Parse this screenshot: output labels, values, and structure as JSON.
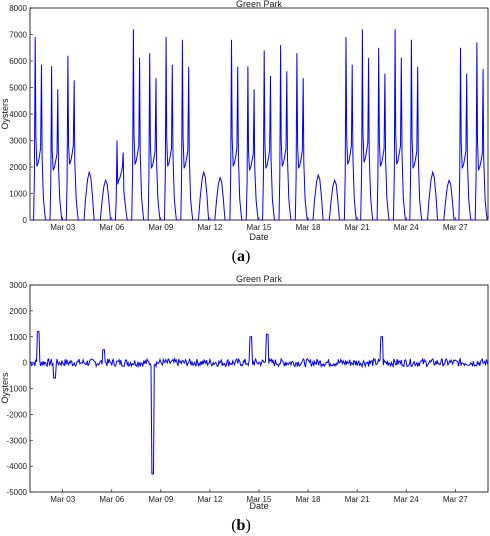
{
  "figure": {
    "caption_a": {
      "open": "(",
      "label": "a",
      "close": ")"
    },
    "caption_b": {
      "open": "(",
      "label": "b",
      "close": ")"
    }
  },
  "chart_data": [
    {
      "type": "line",
      "title": "Green Park",
      "xlabel": "Date",
      "ylabel": "Oysters",
      "line_color": "#0000ff",
      "grid": false,
      "x_start": "2012-03-01",
      "x_end": "2012-03-29",
      "xlim": [
        "Mar 01",
        "Mar 29"
      ],
      "ylim": [
        0,
        8000
      ],
      "yticks": [
        0,
        1000,
        2000,
        3000,
        4000,
        5000,
        6000,
        7000,
        8000
      ],
      "xticks": [
        "Mar 03",
        "Mar 06",
        "Mar 09",
        "Mar 12",
        "Mar 15",
        "Mar 18",
        "Mar 21",
        "Mar 24",
        "Mar 27"
      ],
      "series": [
        {
          "day_type": [
            "weekday",
            "weekday",
            "weekday",
            "weekend",
            "weekend",
            "weekday",
            "weekday",
            "weekday",
            "weekday",
            "weekday",
            "weekend",
            "weekend",
            "weekday",
            "weekday",
            "weekday",
            "weekday",
            "weekday",
            "weekend",
            "weekend",
            "weekday",
            "weekday",
            "weekday",
            "weekday",
            "weekday",
            "weekend",
            "weekend",
            "weekday",
            "weekday"
          ],
          "day_morning_peak": [
            6900,
            5800,
            6200,
            1800,
            1500,
            3000,
            7200,
            6300,
            6900,
            6800,
            1800,
            1600,
            6800,
            5800,
            6400,
            6600,
            6300,
            1700,
            1500,
            6900,
            7200,
            6500,
            7200,
            6800,
            1800,
            1500,
            6500,
            6700
          ],
          "day_evening_peak": [
            2700,
            2500,
            2800,
            0,
            0,
            2000,
            2800,
            2600,
            2700,
            2600,
            0,
            0,
            2700,
            2500,
            2600,
            2700,
            2600,
            0,
            0,
            2800,
            2900,
            2700,
            2800,
            2600,
            0,
            0,
            2600,
            2500
          ]
        }
      ]
    },
    {
      "type": "line",
      "title": "Green Park",
      "xlabel": "Date",
      "ylabel": "Oysters",
      "line_color": "#0000ff",
      "grid": false,
      "x_start": "2012-03-01",
      "x_end": "2012-03-29",
      "xlim": [
        "Mar 01",
        "Mar 29"
      ],
      "ylim": [
        -5000,
        3000
      ],
      "yticks": [
        -5000,
        -4000,
        -3000,
        -2000,
        -1000,
        0,
        1000,
        2000,
        3000
      ],
      "xticks": [
        "Mar 03",
        "Mar 06",
        "Mar 09",
        "Mar 12",
        "Mar 15",
        "Mar 18",
        "Mar 21",
        "Mar 24",
        "Mar 27"
      ],
      "series": [
        {
          "spikes": [
            {
              "date": "Mar 01",
              "value": 1200
            },
            {
              "date": "Mar 02",
              "value": -600
            },
            {
              "date": "Mar 05",
              "value": 500
            },
            {
              "date": "Mar 08",
              "value": -4300
            },
            {
              "date": "Mar 14",
              "value": 1000
            },
            {
              "date": "Mar 15",
              "value": 1100
            },
            {
              "date": "Mar 22",
              "value": 1000
            }
          ],
          "noise_amplitude": 150
        }
      ]
    }
  ]
}
